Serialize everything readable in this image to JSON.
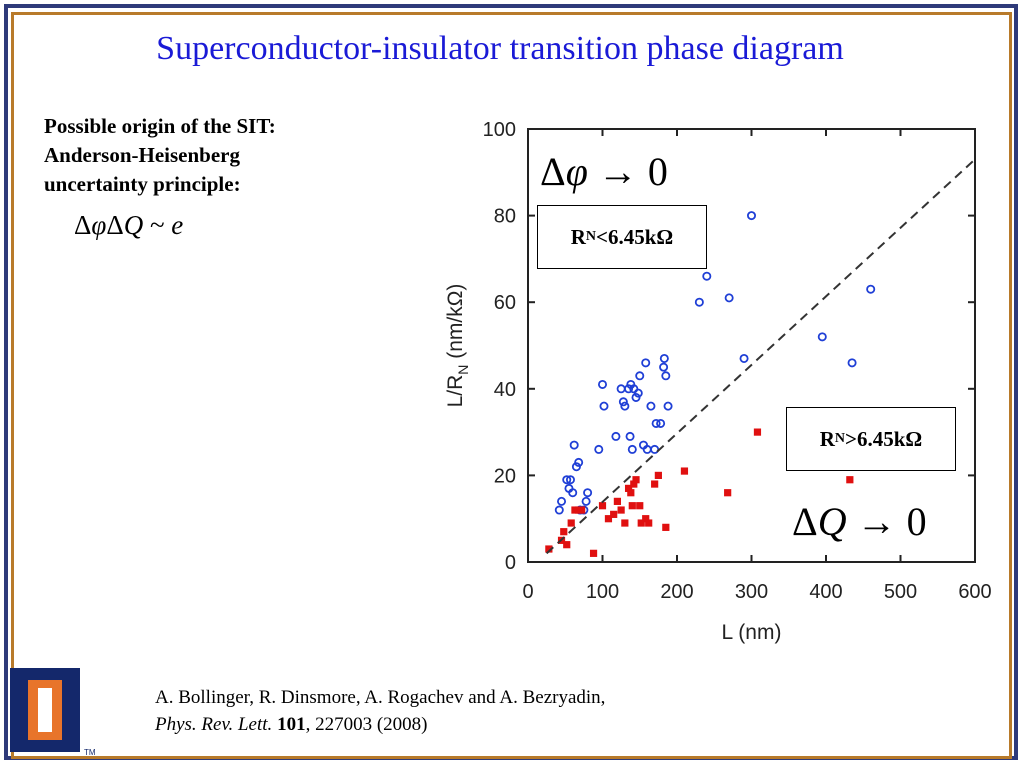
{
  "slide": {
    "title": "Superconductor-insulator transition phase diagram",
    "sit_lines": [
      "Possible origin of the SIT:",
      "Anderson-Heisenberg",
      "uncertainty principle:"
    ],
    "formula": {
      "part1": "Δ",
      "part2": "φ",
      "part3": "Δ",
      "part4": "Q",
      "part5": " ~ ",
      "part6": "e"
    },
    "citation": {
      "authors": "A. Bollinger, R. Dinsmore, A. Rogachev and A. Bezryadin,",
      "journal": "Phys. Rev. Lett.",
      "volume": "101",
      "rest": ", 227003 (2008)"
    },
    "logo": {
      "tm": "TM",
      "icon": "university-i-logo-icon"
    }
  },
  "annotations": {
    "box_sc": {
      "prefix": "R",
      "sub": "N",
      "suffix": "<6.45kΩ"
    },
    "box_ins": {
      "prefix": "R",
      "sub": "N",
      "suffix": ">6.45kΩ"
    },
    "dphi": {
      "delta": "Δ",
      "var": "φ",
      "arrow": " → ",
      "zero": "0"
    },
    "dq": {
      "delta": "Δ",
      "var": "Q",
      "arrow": " → ",
      "zero": "0"
    }
  },
  "chart_data": {
    "type": "scatter",
    "xlabel": "L (nm)",
    "ylabel": {
      "main": "L/R",
      "sub": "N",
      "unit": "  (nm/kΩ)"
    },
    "xlim": [
      0,
      600
    ],
    "ylim": [
      0,
      100
    ],
    "xticks": [
      0,
      100,
      200,
      300,
      400,
      500,
      600
    ],
    "yticks": [
      0,
      20,
      40,
      60,
      80,
      100
    ],
    "grid": false,
    "colors": {
      "superconducting": "#1f3fd6",
      "insulating": "#e01010",
      "axis": "#222222"
    },
    "series": [
      {
        "marker": "open-circle",
        "points": [
          [
            42,
            12
          ],
          [
            45,
            14
          ],
          [
            52,
            19
          ],
          [
            55,
            17
          ],
          [
            57,
            19
          ],
          [
            60,
            16
          ],
          [
            62,
            27
          ],
          [
            65,
            22
          ],
          [
            68,
            23
          ],
          [
            70,
            12
          ],
          [
            75,
            12
          ],
          [
            78,
            14
          ],
          [
            80,
            16
          ],
          [
            95,
            26
          ],
          [
            100,
            41
          ],
          [
            102,
            36
          ],
          [
            118,
            29
          ],
          [
            125,
            40
          ],
          [
            128,
            37
          ],
          [
            130,
            36
          ],
          [
            135,
            40
          ],
          [
            137,
            29
          ],
          [
            138,
            41
          ],
          [
            140,
            26
          ],
          [
            142,
            40
          ],
          [
            145,
            38
          ],
          [
            148,
            39
          ],
          [
            150,
            43
          ],
          [
            155,
            27
          ],
          [
            158,
            46
          ],
          [
            160,
            26
          ],
          [
            165,
            36
          ],
          [
            170,
            26
          ],
          [
            172,
            32
          ],
          [
            178,
            32
          ],
          [
            182,
            45
          ],
          [
            183,
            47
          ],
          [
            185,
            43
          ],
          [
            188,
            36
          ],
          [
            230,
            60
          ],
          [
            240,
            66
          ],
          [
            270,
            61
          ],
          [
            290,
            47
          ],
          [
            300,
            80
          ],
          [
            395,
            52
          ],
          [
            435,
            46
          ],
          [
            460,
            63
          ]
        ]
      },
      {
        "marker": "filled-square",
        "points": [
          [
            28,
            3
          ],
          [
            45,
            5
          ],
          [
            48,
            7
          ],
          [
            52,
            4
          ],
          [
            58,
            9
          ],
          [
            63,
            12
          ],
          [
            68,
            12
          ],
          [
            72,
            12
          ],
          [
            88,
            2
          ],
          [
            100,
            13
          ],
          [
            108,
            10
          ],
          [
            115,
            11
          ],
          [
            120,
            14
          ],
          [
            125,
            12
          ],
          [
            130,
            9
          ],
          [
            135,
            17
          ],
          [
            138,
            16
          ],
          [
            140,
            13
          ],
          [
            142,
            18
          ],
          [
            145,
            19
          ],
          [
            150,
            13
          ],
          [
            152,
            9
          ],
          [
            158,
            10
          ],
          [
            162,
            9
          ],
          [
            170,
            18
          ],
          [
            175,
            20
          ],
          [
            185,
            8
          ],
          [
            210,
            21
          ],
          [
            268,
            16
          ],
          [
            308,
            30
          ],
          [
            432,
            19
          ]
        ]
      }
    ],
    "reference_line": {
      "style": "dashed",
      "from": [
        25,
        2
      ],
      "to": [
        600,
        93
      ]
    }
  }
}
